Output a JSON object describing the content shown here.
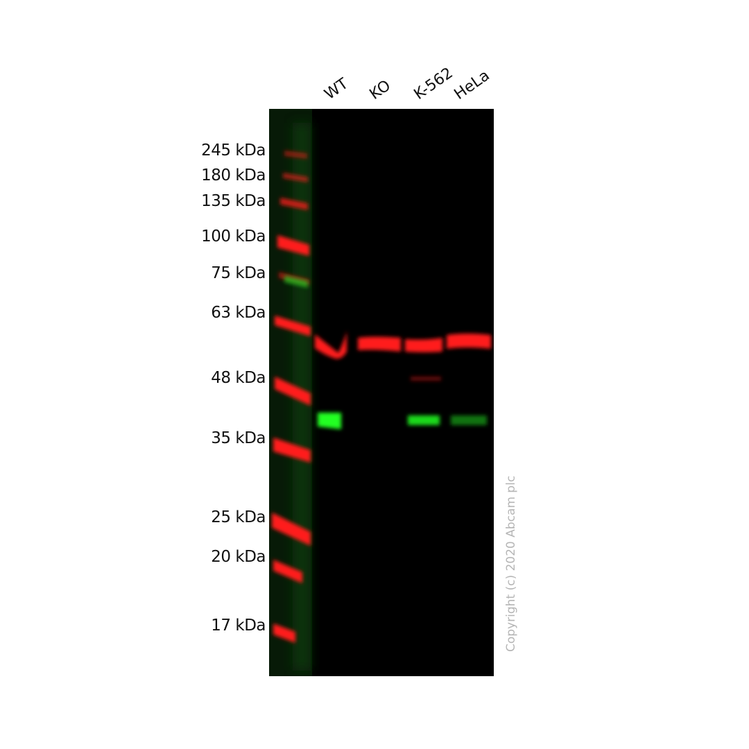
{
  "lanes": [
    "WT",
    "KO",
    "K-562",
    "HeLa"
  ],
  "markers": [
    "245 kDa",
    "180 kDa",
    "135 kDa",
    "100 kDa",
    "75 kDa",
    "63 kDa",
    "48 kDa",
    "35 kDa",
    "25 kDa",
    "20 kDa",
    "17 kDa"
  ],
  "copyright": "Copyright (c) 2020 Abcam plc",
  "colors": {
    "background": "#000000",
    "red_channel": "#ff1a1a",
    "green_channel": "#22ff22"
  }
}
